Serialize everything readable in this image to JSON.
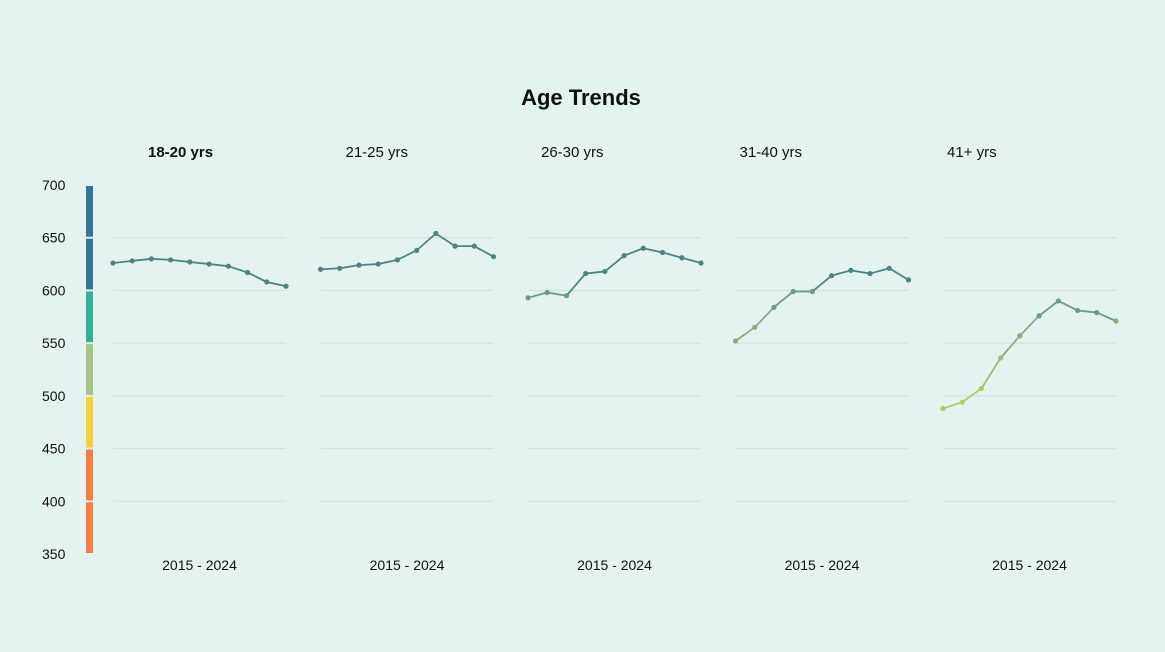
{
  "chart_data": {
    "type": "line",
    "title": "Age Trends",
    "ylim": [
      350,
      700
    ],
    "yticks": [
      700,
      650,
      600,
      550,
      500,
      450,
      400,
      350
    ],
    "grid": true,
    "scale_bands": [
      {
        "from": 650,
        "to": 700,
        "color": "#36729a"
      },
      {
        "from": 600,
        "to": 650,
        "color": "#36729a"
      },
      {
        "from": 550,
        "to": 600,
        "color": "#35b094"
      },
      {
        "from": 500,
        "to": 550,
        "color": "#a7c186"
      },
      {
        "from": 450,
        "to": 500,
        "color": "#f3d138"
      },
      {
        "from": 400,
        "to": 450,
        "color": "#fa7b42"
      },
      {
        "from": 350,
        "to": 400,
        "color": "#fa7b42"
      }
    ],
    "panels": [
      {
        "title": "18-20 yrs",
        "xlabel": "2015 - 2024",
        "values": [
          626,
          628,
          630,
          629,
          627,
          625,
          623,
          617,
          608,
          604
        ]
      },
      {
        "title": "21-25 yrs",
        "xlabel": "2015 - 2024",
        "values": [
          620,
          621,
          624,
          625,
          629,
          638,
          654,
          642,
          642,
          632
        ]
      },
      {
        "title": "26-30 yrs",
        "xlabel": "2015 - 2024",
        "values": [
          593,
          598,
          595,
          616,
          618,
          633,
          640,
          636,
          631,
          626
        ]
      },
      {
        "title": "31-40 yrs",
        "xlabel": "2015 - 2024",
        "values": [
          552,
          565,
          584,
          599,
          599,
          614,
          619,
          616,
          621,
          610
        ]
      },
      {
        "title": "41+ yrs",
        "xlabel": "2015 - 2024",
        "values": [
          488,
          494,
          507,
          536,
          557,
          576,
          590,
          581,
          579,
          571
        ]
      }
    ]
  }
}
